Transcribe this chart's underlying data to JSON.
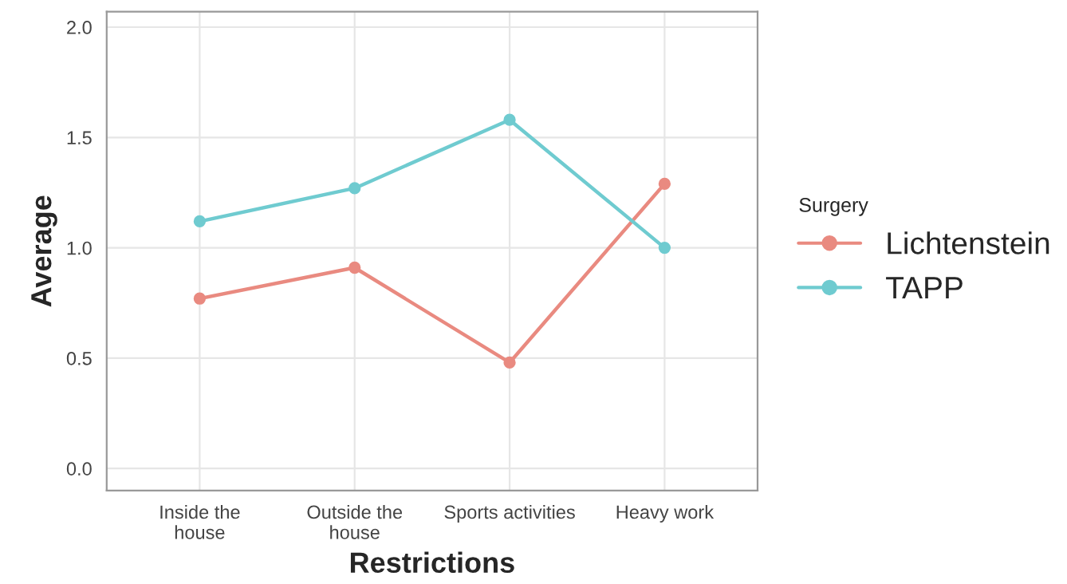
{
  "chart_data": {
    "type": "line",
    "xlabel": "Restrictions",
    "ylabel": "Average",
    "legend_title": "Surgery",
    "categories": [
      "Inside the\nhouse",
      "Outside the\nhouse",
      "Sports activities",
      "Heavy work"
    ],
    "series": [
      {
        "name": "Lichtenstein",
        "color": "#e98a80",
        "values": [
          0.77,
          0.91,
          0.48,
          1.29
        ]
      },
      {
        "name": "TAPP",
        "color": "#6fcbd0",
        "values": [
          1.12,
          1.27,
          1.58,
          1.0
        ]
      }
    ],
    "ylim": [
      -0.1,
      2.07
    ],
    "yticks": [
      {
        "value": 0,
        "label": "0.0"
      },
      {
        "value": 0.5,
        "label": "0.5"
      },
      {
        "value": 1,
        "label": "1.0"
      },
      {
        "value": 1.5,
        "label": "1.5"
      },
      {
        "value": 2,
        "label": "2.0"
      }
    ],
    "grid": true,
    "legend": "right",
    "marker": "circle",
    "line_style": "solid"
  }
}
